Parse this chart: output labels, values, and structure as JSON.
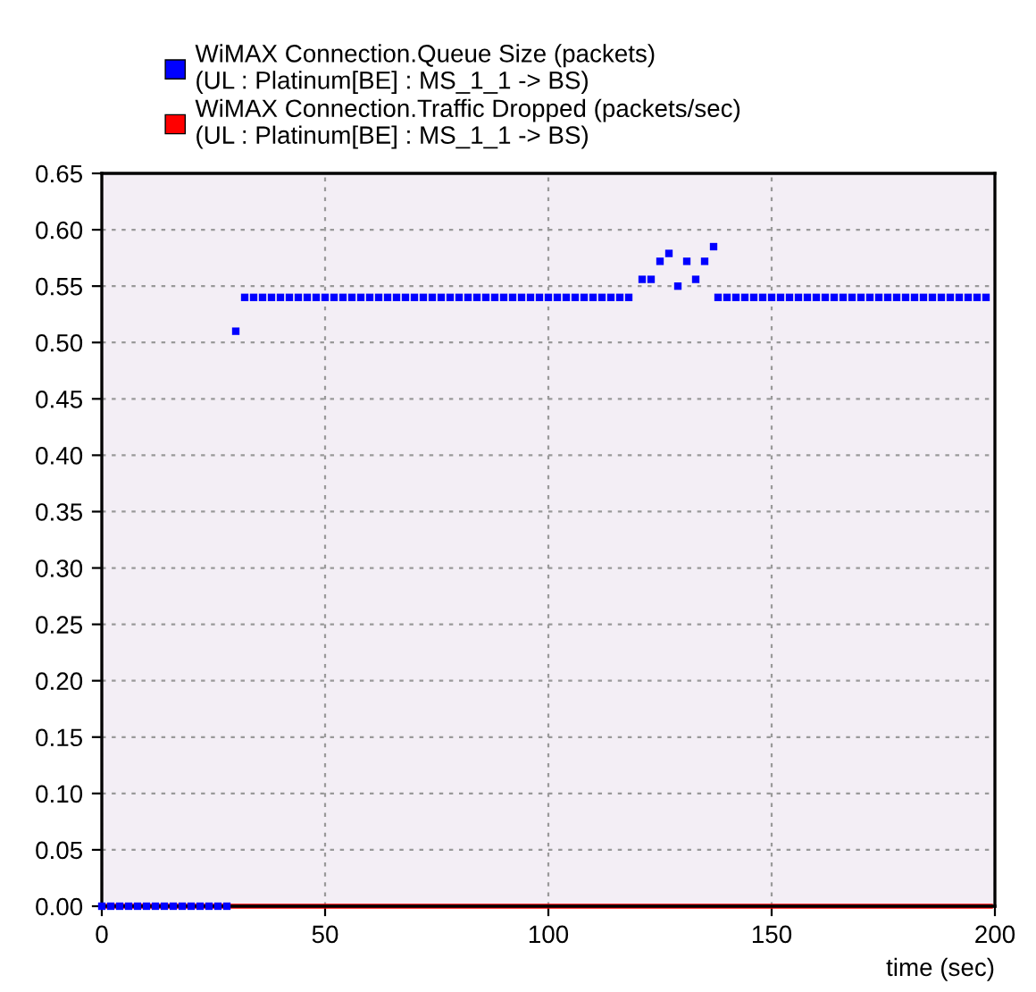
{
  "chart_data": {
    "type": "scatter",
    "xlabel": "time (sec)",
    "series": [
      {
        "name": "WiMAX Connection.Queue Size (packets)\n(UL : Platinum[BE] : MS_1_1 -> BS)",
        "color": "#0000ff",
        "marker": "square",
        "x": [
          0,
          2,
          4,
          6,
          8,
          10,
          12,
          14,
          16,
          18,
          20,
          22,
          24,
          26,
          28,
          30,
          32,
          34,
          36,
          38,
          40,
          42,
          44,
          46,
          48,
          50,
          52,
          54,
          56,
          58,
          60,
          62,
          64,
          66,
          68,
          70,
          72,
          74,
          76,
          78,
          80,
          82,
          84,
          86,
          88,
          90,
          92,
          94,
          96,
          98,
          100,
          102,
          104,
          106,
          108,
          110,
          112,
          114,
          116,
          118,
          121,
          123,
          125,
          127,
          129,
          131,
          133,
          135,
          137,
          138,
          140,
          142,
          144,
          146,
          148,
          150,
          152,
          154,
          156,
          158,
          160,
          162,
          164,
          166,
          168,
          170,
          172,
          174,
          176,
          178,
          180,
          182,
          184,
          186,
          188,
          190,
          192,
          194,
          196,
          198
        ],
        "values": [
          0,
          0,
          0,
          0,
          0,
          0,
          0,
          0,
          0,
          0,
          0,
          0,
          0,
          0,
          0,
          0.51,
          0.54,
          0.54,
          0.54,
          0.54,
          0.54,
          0.54,
          0.54,
          0.54,
          0.54,
          0.54,
          0.54,
          0.54,
          0.54,
          0.54,
          0.54,
          0.54,
          0.54,
          0.54,
          0.54,
          0.54,
          0.54,
          0.54,
          0.54,
          0.54,
          0.54,
          0.54,
          0.54,
          0.54,
          0.54,
          0.54,
          0.54,
          0.54,
          0.54,
          0.54,
          0.54,
          0.54,
          0.54,
          0.54,
          0.54,
          0.54,
          0.54,
          0.54,
          0.54,
          0.54,
          0.556,
          0.556,
          0.572,
          0.579,
          0.55,
          0.572,
          0.556,
          0.572,
          0.585,
          0.54,
          0.54,
          0.54,
          0.54,
          0.54,
          0.54,
          0.54,
          0.54,
          0.54,
          0.54,
          0.54,
          0.54,
          0.54,
          0.54,
          0.54,
          0.54,
          0.54,
          0.54,
          0.54,
          0.54,
          0.54,
          0.54,
          0.54,
          0.54,
          0.54,
          0.54,
          0.54,
          0.54,
          0.54,
          0.54,
          0.54
        ]
      },
      {
        "name": "WiMAX Connection.Traffic Dropped (packets/sec)\n(UL : Platinum[BE] : MS_1_1 -> BS)",
        "color": "#ff0000",
        "type": "line",
        "marker": "none",
        "x": [
          0,
          30,
          60,
          90,
          120,
          150,
          180,
          199
        ],
        "values": [
          0,
          0,
          0,
          0,
          0,
          0,
          0,
          0
        ]
      }
    ],
    "xlim": [
      0,
      200
    ],
    "xticks": [
      0,
      50,
      100,
      150,
      200
    ],
    "ylim": [
      0,
      0.65
    ],
    "yticks": [
      {
        "value": 0,
        "label": "0.00"
      },
      {
        "value": 0.05,
        "label": "0.05"
      },
      {
        "value": 0.1,
        "label": "0.10"
      },
      {
        "value": 0.15,
        "label": "0.15"
      },
      {
        "value": 0.2,
        "label": "0.20"
      },
      {
        "value": 0.25,
        "label": "0.25"
      },
      {
        "value": 0.3,
        "label": "0.30"
      },
      {
        "value": 0.35,
        "label": "0.35"
      },
      {
        "value": 0.4,
        "label": "0.40"
      },
      {
        "value": 0.45,
        "label": "0.45"
      },
      {
        "value": 0.5,
        "label": "0.50"
      },
      {
        "value": 0.55,
        "label": "0.55"
      },
      {
        "value": 0.6,
        "label": "0.60"
      },
      {
        "value": 0.65,
        "label": "0.65"
      }
    ],
    "grid": true,
    "legend": "top left"
  }
}
